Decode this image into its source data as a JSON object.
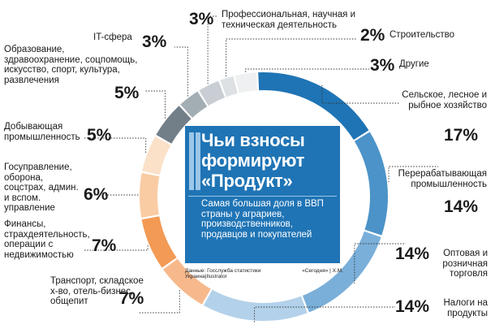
{
  "chart_data": {
    "type": "pie",
    "title": "Чьи взносы формируют «Продукт»",
    "subtitle": "Самая большая доля в ВВП страны у аграриев, производственников, продавцов и покупателей",
    "source": "Данные: Госслужба статистики Украина|Ilustrator",
    "credit": "«Сегодня» | Х.М.",
    "slices": [
      {
        "label": "Сельское, лесное и рыбное хозяйство",
        "value": 17,
        "display": "17%",
        "color": "#1f74b5"
      },
      {
        "label": "Перерабатывающая промышленность",
        "value": 14,
        "display": "14%",
        "color": "#4b93c8"
      },
      {
        "label": "Оптовая и розничная торговля",
        "value": 14,
        "display": "14%",
        "color": "#7aafd9"
      },
      {
        "label": "Налоги на продукты",
        "value": 14,
        "display": "14%",
        "color": "#b3d1ea"
      },
      {
        "label": "Транспорт, складское х-во, отель-бизнес, общепит",
        "value": 7,
        "display": "7%",
        "color": "#f7b98c"
      },
      {
        "label": "Финансы, страхдеятельность, операции с недвижимостью",
        "value": 7,
        "display": "7%",
        "color": "#f39a55"
      },
      {
        "label": "Госуправление, оборона, соцстрах, админ. и вспом. управление",
        "value": 6,
        "display": "6%",
        "color": "#f9cca3"
      },
      {
        "label": "Добывающая промышленность",
        "value": 5,
        "display": "5%",
        "color": "#fbe1c8"
      },
      {
        "label": "Образование, здравоохранение, соцпомощь, искусство, спорт, культура, развлечения",
        "value": 5,
        "display": "5%",
        "color": "#737f88"
      },
      {
        "label": "IT-сфера",
        "value": 3,
        "display": "3%",
        "color": "#a3adb4"
      },
      {
        "label": "Профессиональная, научная и техническая деятельность",
        "value": 3,
        "display": "3%",
        "color": "#c8ced3"
      },
      {
        "label": "Строительство",
        "value": 2,
        "display": "2%",
        "color": "#dde1e4"
      },
      {
        "label": "Другие",
        "value": 3,
        "display": "3%",
        "color": "#eef0f1"
      }
    ]
  }
}
